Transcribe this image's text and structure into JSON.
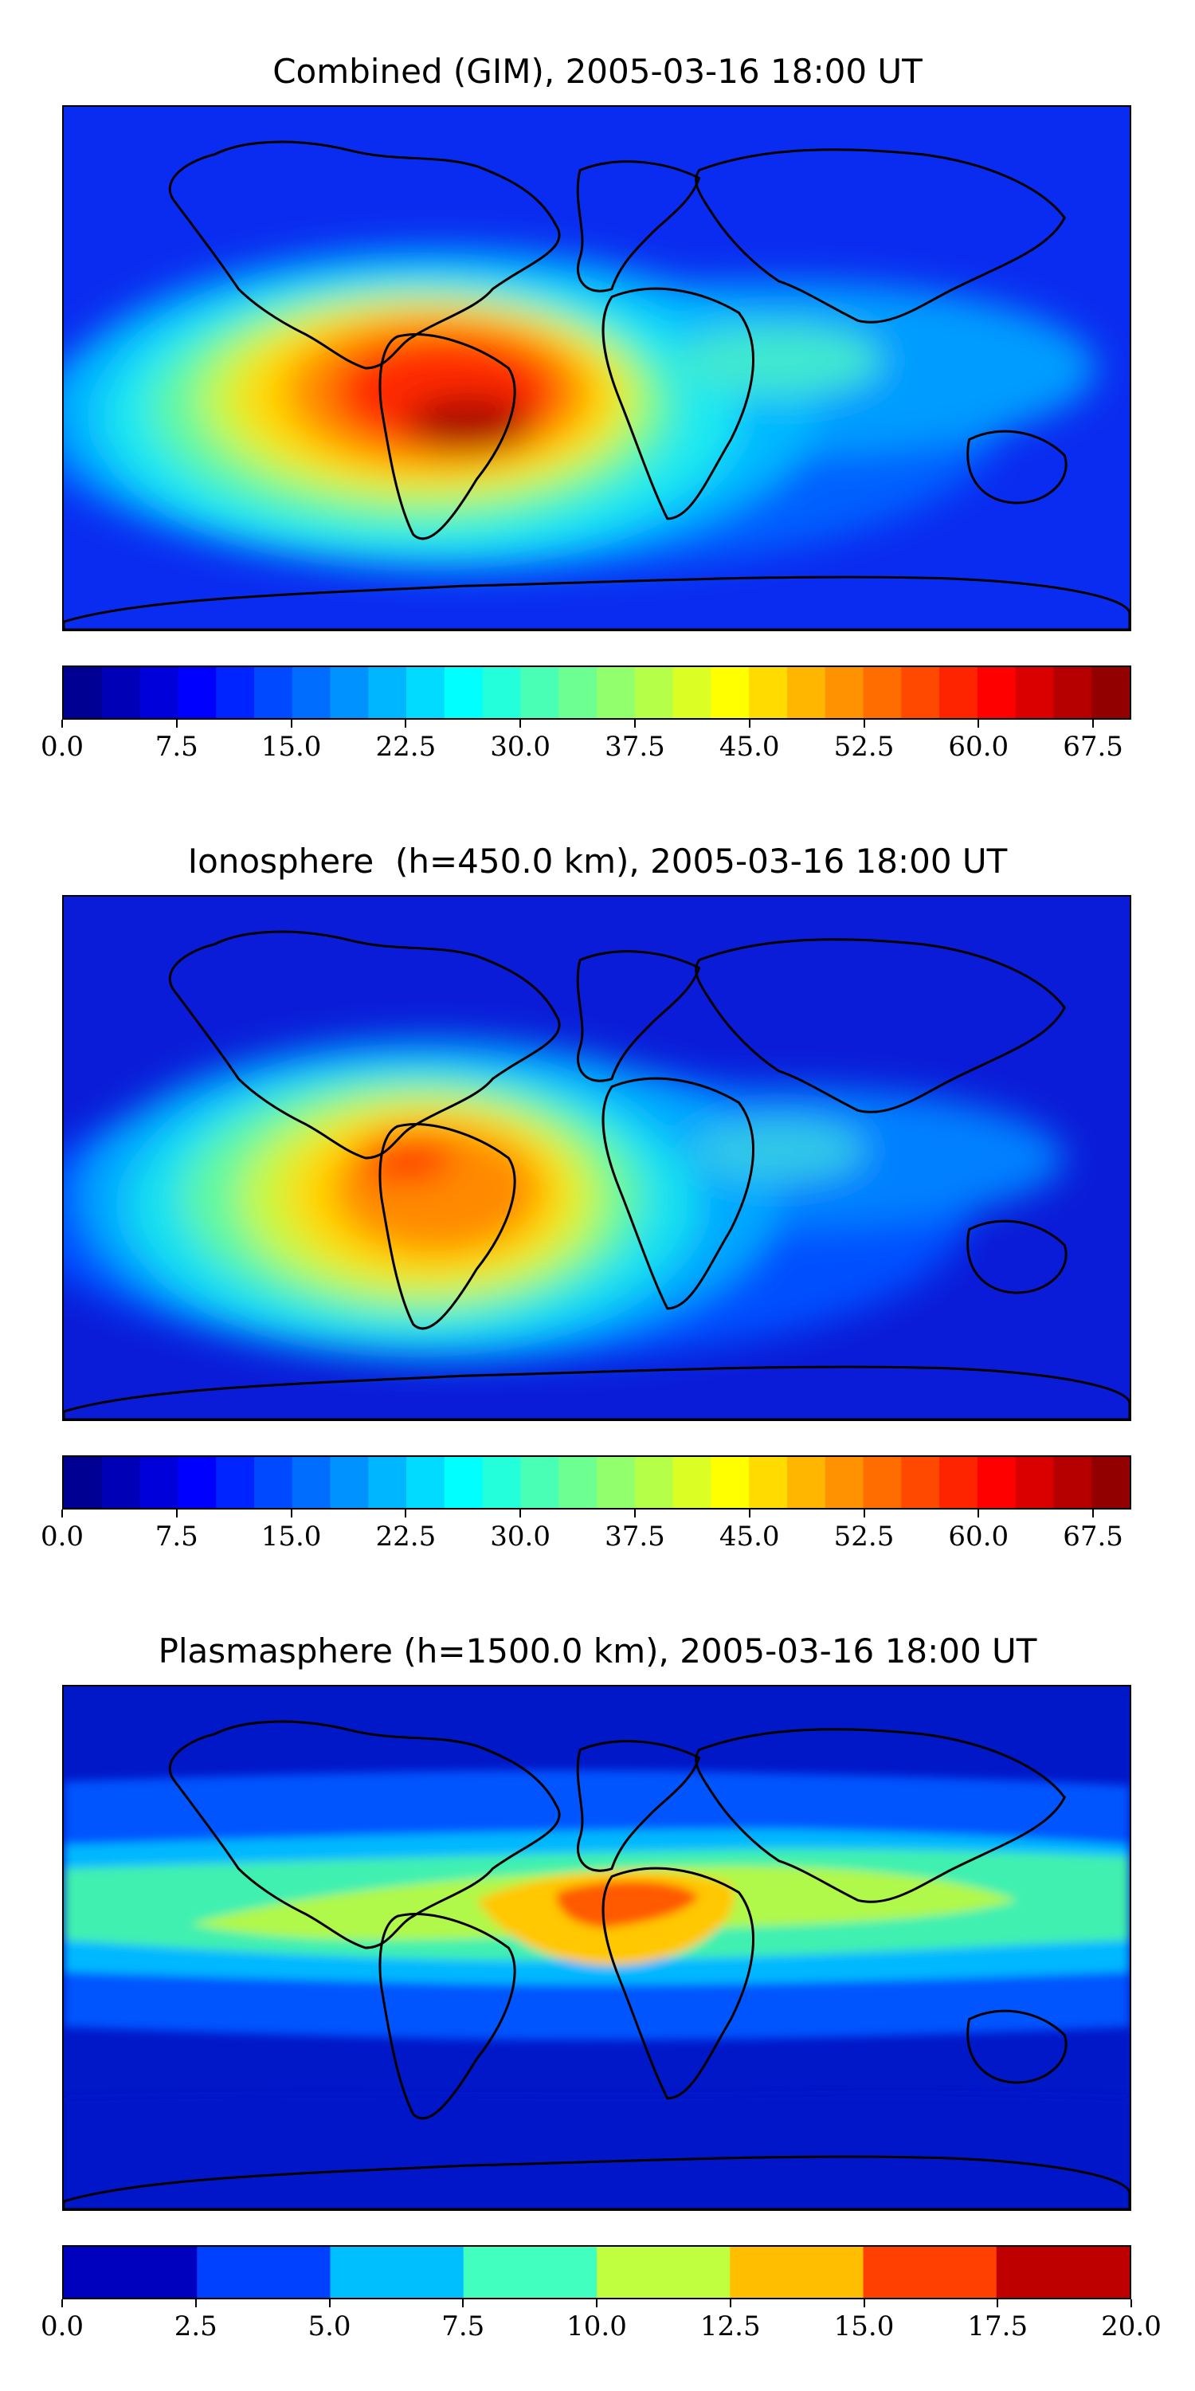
{
  "panels": [
    {
      "title": "Combined (GIM), 2005-03-16 18:00 UT",
      "colorbar": {
        "levels": 28,
        "min": 0.0,
        "max": 70.0,
        "ticks": [
          "0.0",
          "7.5",
          "15.0",
          "22.5",
          "30.0",
          "37.5",
          "45.0",
          "52.5",
          "60.0",
          "67.5"
        ],
        "tick_values": [
          0.0,
          7.5,
          15.0,
          22.5,
          30.0,
          37.5,
          45.0,
          52.5,
          60.0,
          67.5
        ]
      }
    },
    {
      "title": "Ionosphere  (h=450.0 km), 2005-03-16 18:00 UT",
      "colorbar": {
        "levels": 28,
        "min": 0.0,
        "max": 70.0,
        "ticks": [
          "0.0",
          "7.5",
          "15.0",
          "22.5",
          "30.0",
          "37.5",
          "45.0",
          "52.5",
          "60.0",
          "67.5"
        ],
        "tick_values": [
          0.0,
          7.5,
          15.0,
          22.5,
          30.0,
          37.5,
          45.0,
          52.5,
          60.0,
          67.5
        ]
      }
    },
    {
      "title": "Plasmasphere (h=1500.0 km), 2005-03-16 18:00 UT",
      "colorbar": {
        "levels": 8,
        "min": 0.0,
        "max": 20.0,
        "ticks": [
          "0.0",
          "2.5",
          "5.0",
          "7.5",
          "10.0",
          "12.5",
          "15.0",
          "17.5",
          "20.0"
        ],
        "tick_values": [
          0.0,
          2.5,
          5.0,
          7.5,
          10.0,
          12.5,
          15.0,
          17.5,
          20.0
        ]
      }
    }
  ]
}
